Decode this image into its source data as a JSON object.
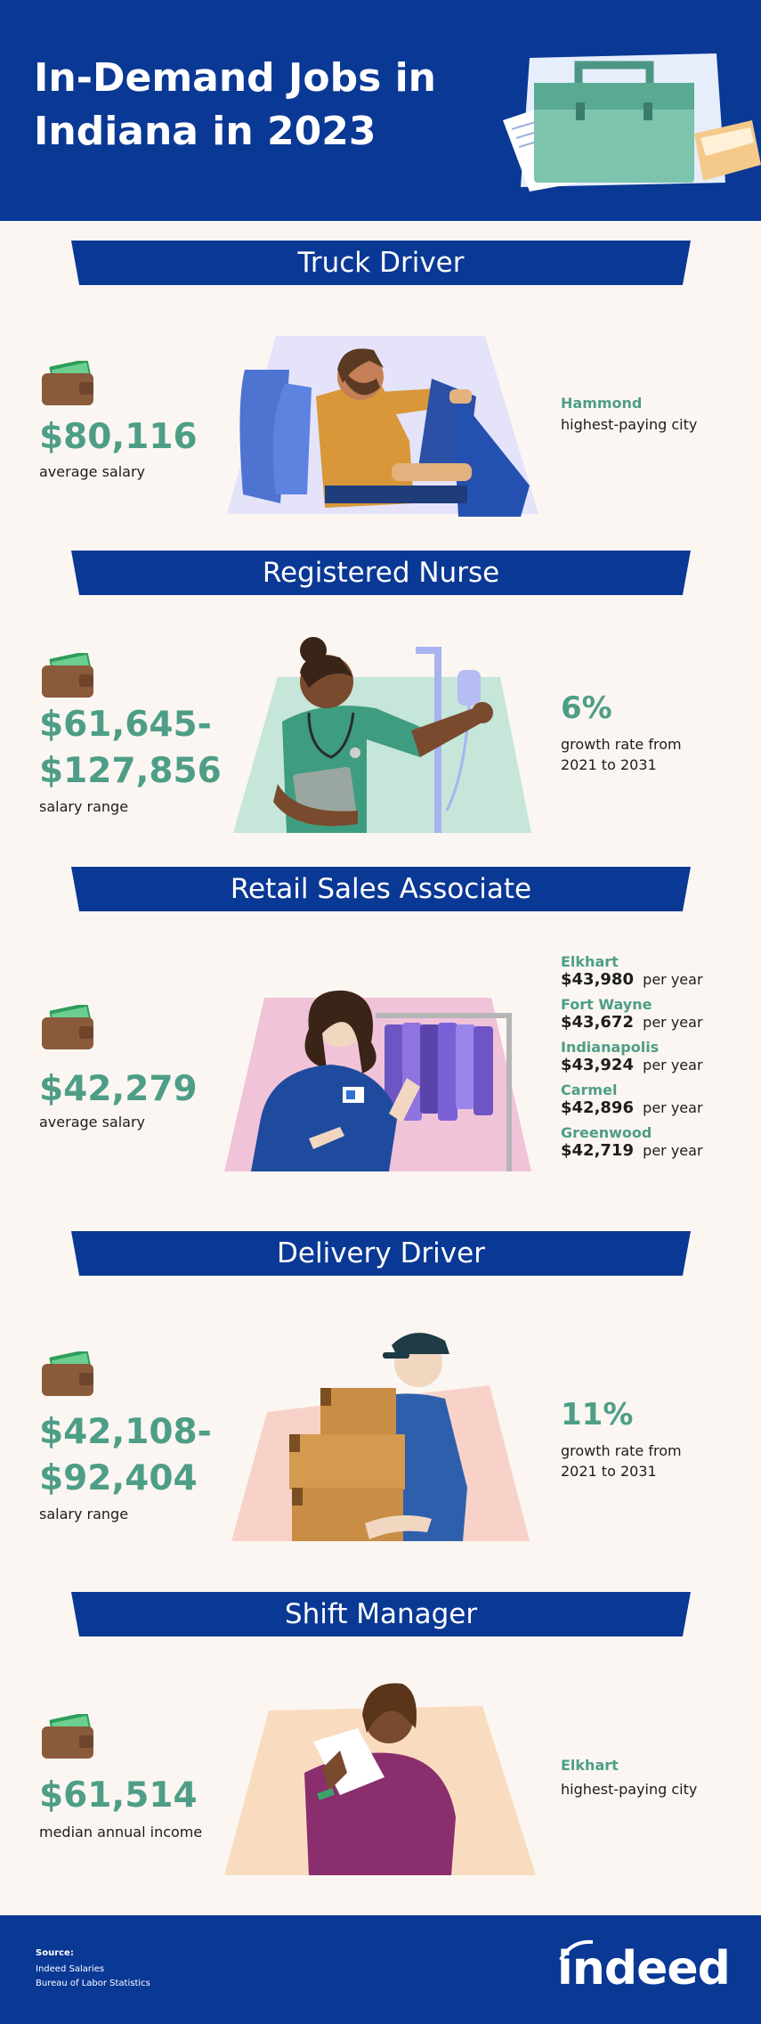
{
  "header": {
    "title": "In-Demand Jobs in Indiana in 2023"
  },
  "jobs": [
    {
      "title": "Truck Driver",
      "amount": "$80,116",
      "amount_label": "average salary",
      "right_city": "Hammond",
      "right_label": "highest-paying city"
    },
    {
      "title": "Registered Nurse",
      "amount_line1": "$61,645-",
      "amount_line2": "$127,856",
      "amount_label": "salary range",
      "right_pct": "6%",
      "right_label_line1": "growth rate from",
      "right_label_line2": "2021 to 2031"
    },
    {
      "title": "Retail Sales Associate",
      "amount": "$42,279",
      "amount_label": "average salary",
      "per_year": "per year",
      "cities": [
        {
          "name": "Elkhart",
          "salary": "$43,980"
        },
        {
          "name": "Fort Wayne",
          "salary": "$43,672"
        },
        {
          "name": "Indianapolis",
          "salary": "$43,924"
        },
        {
          "name": "Carmel",
          "salary": "$42,896"
        },
        {
          "name": "Greenwood",
          "salary": "$42,719"
        }
      ]
    },
    {
      "title": "Delivery Driver",
      "amount_line1": "$42,108-",
      "amount_line2": "$92,404",
      "amount_label": "salary range",
      "right_pct": "11%",
      "right_label_line1": "growth rate from",
      "right_label_line2": "2021 to 2031"
    },
    {
      "title": "Shift Manager",
      "amount": "$61,514",
      "amount_label": "median annual income",
      "right_city": "Elkhart",
      "right_label": "highest-paying city"
    }
  ],
  "footer": {
    "source_label": "Source:",
    "source1": "Indeed Salaries",
    "source2": "Bureau of Labor Statistics",
    "logo": "indeed"
  },
  "colors": {
    "brand_blue": "#0a3895",
    "accent_green": "#4e9e87",
    "background": "#fbf6f1"
  },
  "icons": [
    "briefcase-icon",
    "wallet-icon"
  ]
}
